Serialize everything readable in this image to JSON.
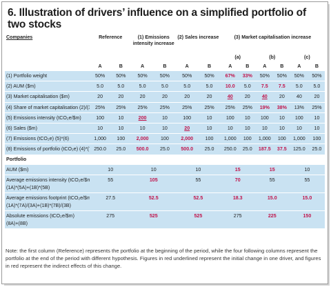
{
  "title": "6. Illustration of drivers’ influence on a simplified portfolio of two stocks",
  "headers": {
    "companies": "Companies",
    "reference": "Reference",
    "emissions_intensity": "(1) Emissions intensity increase",
    "sales_increase": "(2) Sales increase",
    "market_cap": "(3) Market capitalisation increase",
    "sub_a": "(a)",
    "sub_b": "(b)",
    "sub_c": "(c)",
    "col_a": "A",
    "col_b": "B"
  },
  "rows": [
    {
      "label": "(1) Portfolio weight",
      "v": [
        [
          "50%",
          ""
        ],
        [
          "50%",
          ""
        ],
        [
          "50%",
          ""
        ],
        [
          "50%",
          ""
        ],
        [
          "50%",
          ""
        ],
        [
          "50%",
          ""
        ],
        [
          "67%",
          "r"
        ],
        [
          "33%",
          "r"
        ],
        [
          "50%",
          ""
        ],
        [
          "50%",
          ""
        ],
        [
          "50%",
          ""
        ],
        [
          "50%",
          ""
        ]
      ]
    },
    {
      "label": "(2) AUM ($m)",
      "v": [
        [
          "5.0",
          ""
        ],
        [
          "5.0",
          ""
        ],
        [
          "5.0",
          ""
        ],
        [
          "5.0",
          ""
        ],
        [
          "5.0",
          ""
        ],
        [
          "5.0",
          ""
        ],
        [
          "10.0",
          "r"
        ],
        [
          "5.0",
          ""
        ],
        [
          "7.5",
          "r"
        ],
        [
          "7.5",
          "r"
        ],
        [
          "5.0",
          ""
        ],
        [
          "5.0",
          ""
        ]
      ]
    },
    {
      "label": "(3) Market capitalisation ($m)",
      "v": [
        [
          "20",
          ""
        ],
        [
          "20",
          ""
        ],
        [
          "20",
          ""
        ],
        [
          "20",
          ""
        ],
        [
          "20",
          ""
        ],
        [
          "20",
          ""
        ],
        [
          "40",
          "ru"
        ],
        [
          "20",
          ""
        ],
        [
          "40",
          "ru"
        ],
        [
          "20",
          ""
        ],
        [
          "40",
          ""
        ],
        [
          "20",
          ""
        ]
      ]
    },
    {
      "label": "(4) Share of market capitalisation (2)/(3)",
      "v": [
        [
          "25%",
          ""
        ],
        [
          "25%",
          ""
        ],
        [
          "25%",
          ""
        ],
        [
          "25%",
          ""
        ],
        [
          "25%",
          ""
        ],
        [
          "25%",
          ""
        ],
        [
          "25%",
          ""
        ],
        [
          "25%",
          ""
        ],
        [
          "19%",
          "r"
        ],
        [
          "38%",
          "r"
        ],
        [
          "13%",
          ""
        ],
        [
          "25%",
          ""
        ]
      ]
    },
    {
      "label": "(5) Emissions intensity (tCO₂e/$m)",
      "v": [
        [
          "100",
          ""
        ],
        [
          "10",
          ""
        ],
        [
          "200",
          "ru"
        ],
        [
          "10",
          ""
        ],
        [
          "100",
          ""
        ],
        [
          "10",
          ""
        ],
        [
          "100",
          ""
        ],
        [
          "10",
          ""
        ],
        [
          "100",
          ""
        ],
        [
          "10",
          ""
        ],
        [
          "100",
          ""
        ],
        [
          "10",
          ""
        ]
      ]
    },
    {
      "label": "(6) Sales ($m)",
      "v": [
        [
          "10",
          ""
        ],
        [
          "10",
          ""
        ],
        [
          "10",
          ""
        ],
        [
          "10",
          ""
        ],
        [
          "20",
          "ru"
        ],
        [
          "10",
          ""
        ],
        [
          "10",
          ""
        ],
        [
          "10",
          ""
        ],
        [
          "10",
          ""
        ],
        [
          "10",
          ""
        ],
        [
          "10",
          ""
        ],
        [
          "10",
          ""
        ]
      ]
    },
    {
      "label": "(7) Emissions (tCO₂e) (5)*(6)",
      "v": [
        [
          "1,000",
          ""
        ],
        [
          "100",
          ""
        ],
        [
          "2,000",
          "r"
        ],
        [
          "100",
          ""
        ],
        [
          "2,000",
          "r"
        ],
        [
          "100",
          ""
        ],
        [
          "1,000",
          ""
        ],
        [
          "100",
          ""
        ],
        [
          "1,000",
          ""
        ],
        [
          "100",
          ""
        ],
        [
          "1,000",
          ""
        ],
        [
          "100",
          ""
        ]
      ]
    },
    {
      "label": "(8) Emissions of portfolio (tCO₂e) (4)*(7)",
      "v": [
        [
          "250.0",
          ""
        ],
        [
          "25.0",
          ""
        ],
        [
          "500.0",
          "r"
        ],
        [
          "25.0",
          ""
        ],
        [
          "500.0",
          "r"
        ],
        [
          "25.0",
          ""
        ],
        [
          "250.0",
          ""
        ],
        [
          "25.0",
          ""
        ],
        [
          "187.5",
          "r"
        ],
        [
          "37.5",
          "r"
        ],
        [
          "125.0",
          ""
        ],
        [
          "25.0",
          ""
        ]
      ]
    }
  ],
  "portfolio": {
    "heading": "Portfolio",
    "rows": [
      {
        "label": "AUM ($m)",
        "label2": "",
        "v": [
          [
            "10",
            ""
          ],
          [
            "10",
            ""
          ],
          [
            "10",
            ""
          ],
          [
            "15",
            "r"
          ],
          [
            "15",
            "r"
          ],
          [
            "10",
            ""
          ]
        ]
      },
      {
        "label": "Average emissions intensity (tCO₂e/$m)",
        "label2": "(1A)*(5A)+(1B)*(5B)",
        "v": [
          [
            "55",
            ""
          ],
          [
            "105",
            "r"
          ],
          [
            "55",
            ""
          ],
          [
            "70",
            "r"
          ],
          [
            "55",
            ""
          ],
          [
            "55",
            ""
          ]
        ]
      },
      {
        "label": "Average emissions footprint (tCO₂e/$m)",
        "label2": "(1A)*(7A)/(3A)+(1B)*(7B)/(3B)",
        "v": [
          [
            "27.5",
            ""
          ],
          [
            "52.5",
            "r"
          ],
          [
            "52.5",
            "r"
          ],
          [
            "18.3",
            "r"
          ],
          [
            "15.0",
            "r"
          ],
          [
            "15.0",
            "r"
          ]
        ]
      },
      {
        "label": "Absolute emissions (tCO₂e/$m)",
        "label2": "(8A)+(8B)",
        "v": [
          [
            "275",
            ""
          ],
          [
            "525",
            "r"
          ],
          [
            "525",
            "r"
          ],
          [
            "275",
            ""
          ],
          [
            "225",
            "r"
          ],
          [
            "150",
            "r"
          ]
        ]
      }
    ]
  },
  "note": "Note: the first column (Reference) represents the portfolio at the beginning of the period, while the four following columns represent the portfolio at the end of the period with different hypothesis. Figures in red underlined represent the initial change in one driver, and figures in red represent the indirect effects of this change."
}
